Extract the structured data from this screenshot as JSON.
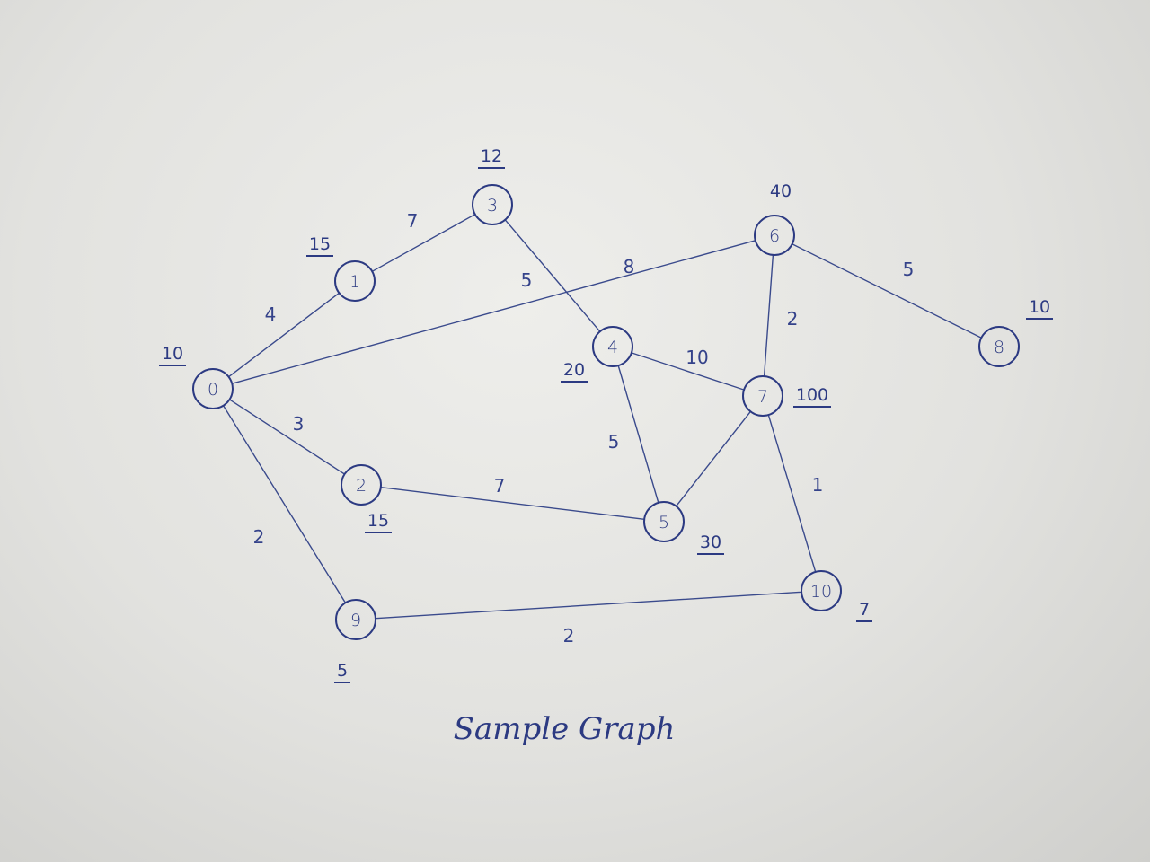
{
  "caption": "Sample Graph",
  "colors": {
    "ink": "#2c3a82",
    "paper": "#e4e4e1"
  },
  "nodes": [
    {
      "id": "0",
      "value": "10"
    },
    {
      "id": "1",
      "value": "15"
    },
    {
      "id": "2",
      "value": "15"
    },
    {
      "id": "3",
      "value": "12"
    },
    {
      "id": "4",
      "value": "20"
    },
    {
      "id": "5",
      "value": "30"
    },
    {
      "id": "6",
      "value": "40"
    },
    {
      "id": "7",
      "value": "100"
    },
    {
      "id": "8",
      "value": "10"
    },
    {
      "id": "9",
      "value": "5"
    },
    {
      "id": "10",
      "value": "7"
    }
  ],
  "edges": [
    {
      "from": "0",
      "to": "1",
      "weight": "4"
    },
    {
      "from": "0",
      "to": "2",
      "weight": "3"
    },
    {
      "from": "0",
      "to": "6",
      "weight": "8"
    },
    {
      "from": "0",
      "to": "9",
      "weight": "2"
    },
    {
      "from": "1",
      "to": "3",
      "weight": "7"
    },
    {
      "from": "3",
      "to": "4",
      "weight": "5"
    },
    {
      "from": "4",
      "to": "7",
      "weight": "10"
    },
    {
      "from": "4",
      "to": "5",
      "weight": "5"
    },
    {
      "from": "2",
      "to": "5",
      "weight": "7"
    },
    {
      "from": "5",
      "to": "7",
      "weight": ""
    },
    {
      "from": "6",
      "to": "7",
      "weight": "2"
    },
    {
      "from": "6",
      "to": "8",
      "weight": "5"
    },
    {
      "from": "7",
      "to": "10",
      "weight": "1"
    },
    {
      "from": "9",
      "to": "10",
      "weight": "2"
    }
  ]
}
